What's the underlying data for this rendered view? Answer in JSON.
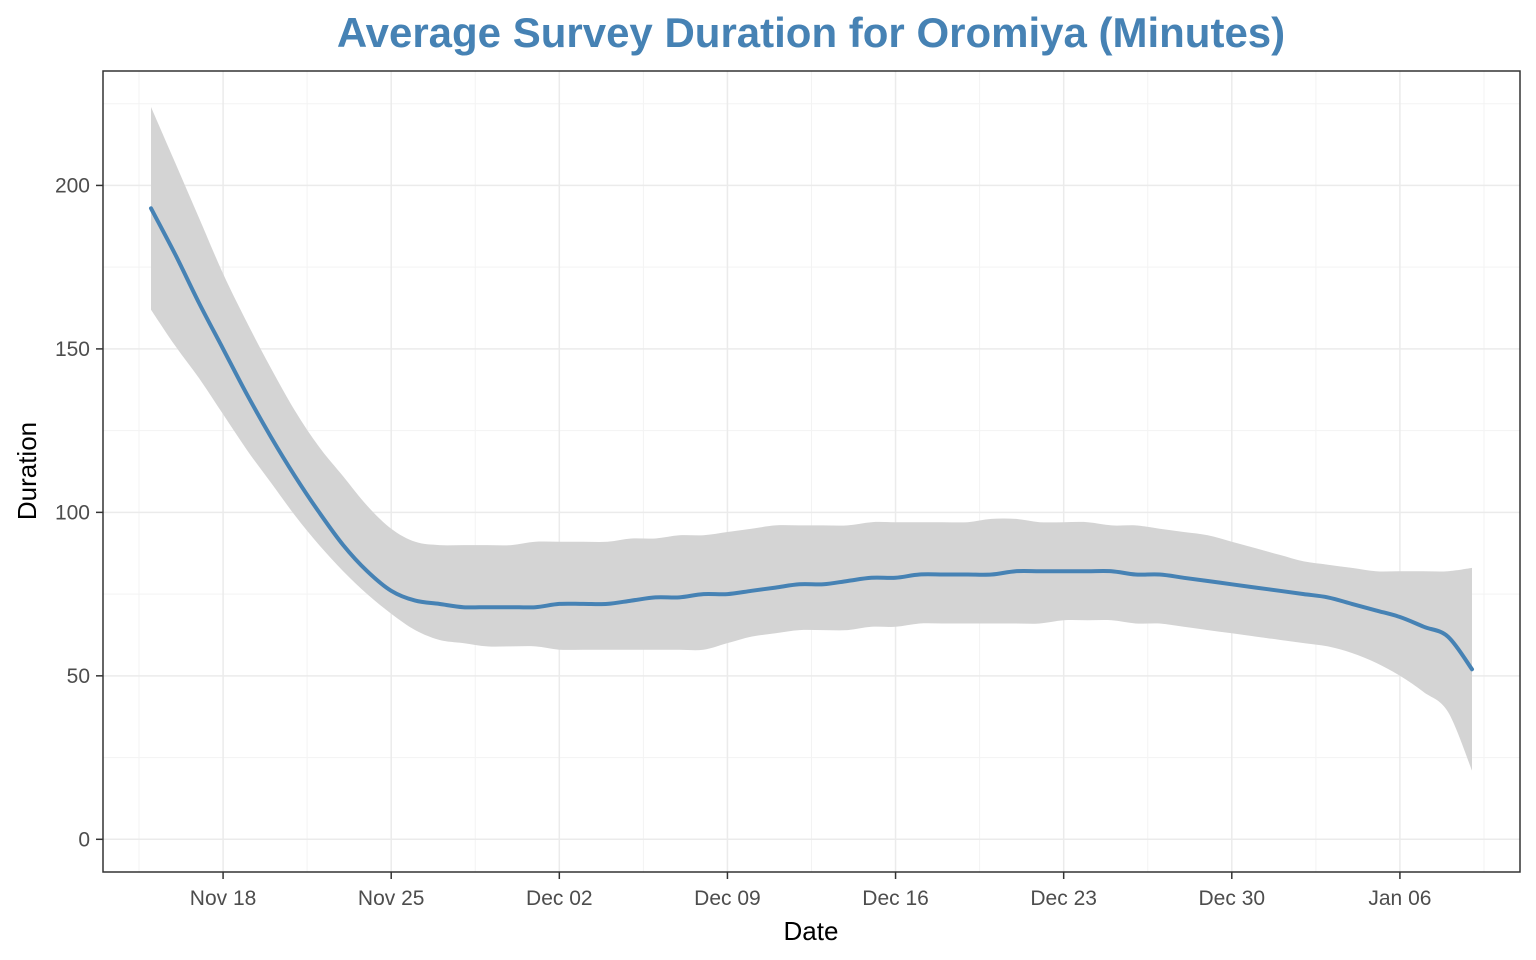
{
  "chart_data": {
    "type": "line",
    "title": "Average Survey Duration for Oromiya (Minutes)",
    "xlabel": "Date",
    "ylabel": "Duration",
    "x_axis_type": "date",
    "xlim": [
      "2023-11-13",
      "2024-01-11"
    ],
    "ylim": [
      -10,
      235
    ],
    "x_ticks": [
      {
        "date": "2023-11-18",
        "label": "Nov 18"
      },
      {
        "date": "2023-11-25",
        "label": "Nov 25"
      },
      {
        "date": "2023-12-02",
        "label": "Dec 02"
      },
      {
        "date": "2023-12-09",
        "label": "Dec 09"
      },
      {
        "date": "2023-12-16",
        "label": "Dec 16"
      },
      {
        "date": "2023-12-23",
        "label": "Dec 23"
      },
      {
        "date": "2023-12-30",
        "label": "Dec 30"
      },
      {
        "date": "2024-01-06",
        "label": "Jan 06"
      }
    ],
    "y_ticks": [
      0,
      50,
      100,
      150,
      200
    ],
    "grid": true,
    "legend": "none",
    "colors": {
      "title": "#4682b4",
      "line": "#4682b4",
      "ribbon": "#d4d4d4",
      "grid_major": "#ebebeb",
      "grid_minor": "#f3f3f3",
      "panel_border": "#333333"
    },
    "series": [
      {
        "x": [
          "2023-11-15",
          "2023-11-16",
          "2023-11-17",
          "2023-11-18",
          "2023-11-19",
          "2023-11-20",
          "2023-11-21",
          "2023-11-22",
          "2023-11-23",
          "2023-11-24",
          "2023-11-25",
          "2023-11-26",
          "2023-11-27",
          "2023-11-28",
          "2023-11-29",
          "2023-11-30",
          "2023-12-01",
          "2023-12-02",
          "2023-12-03",
          "2023-12-04",
          "2023-12-05",
          "2023-12-06",
          "2023-12-07",
          "2023-12-08",
          "2023-12-09",
          "2023-12-10",
          "2023-12-11",
          "2023-12-12",
          "2023-12-13",
          "2023-12-14",
          "2023-12-15",
          "2023-12-16",
          "2023-12-17",
          "2023-12-18",
          "2023-12-19",
          "2023-12-20",
          "2023-12-21",
          "2023-12-22",
          "2023-12-23",
          "2023-12-24",
          "2023-12-25",
          "2023-12-26",
          "2023-12-27",
          "2023-12-28",
          "2023-12-29",
          "2023-12-30",
          "2023-12-31",
          "2024-01-01",
          "2024-01-02",
          "2024-01-03",
          "2024-01-04",
          "2024-01-05",
          "2024-01-06",
          "2024-01-07",
          "2024-01-08",
          "2024-01-09"
        ],
        "y": [
          193,
          179,
          164,
          150,
          136,
          123,
          111,
          100,
          90,
          82,
          76,
          73,
          72,
          71,
          71,
          71,
          71,
          72,
          72,
          72,
          73,
          74,
          74,
          75,
          75,
          76,
          77,
          78,
          78,
          79,
          80,
          80,
          81,
          81,
          81,
          81,
          82,
          82,
          82,
          82,
          82,
          81,
          81,
          80,
          79,
          78,
          77,
          76,
          75,
          74,
          72,
          70,
          68,
          65,
          62,
          52
        ],
        "lower": [
          162,
          151,
          141,
          130,
          119,
          109,
          99,
          90,
          82,
          75,
          69,
          64,
          61,
          60,
          59,
          59,
          59,
          58,
          58,
          58,
          58,
          58,
          58,
          58,
          60,
          62,
          63,
          64,
          64,
          64,
          65,
          65,
          66,
          66,
          66,
          66,
          66,
          66,
          67,
          67,
          67,
          66,
          66,
          65,
          64,
          63,
          62,
          61,
          60,
          59,
          57,
          54,
          50,
          45,
          39,
          21
        ],
        "upper": [
          224,
          207,
          190,
          173,
          158,
          144,
          131,
          120,
          111,
          102,
          95,
          91,
          90,
          90,
          90,
          90,
          91,
          91,
          91,
          91,
          92,
          92,
          93,
          93,
          94,
          95,
          96,
          96,
          96,
          96,
          97,
          97,
          97,
          97,
          97,
          98,
          98,
          97,
          97,
          97,
          96,
          96,
          95,
          94,
          93,
          91,
          89,
          87,
          85,
          84,
          83,
          82,
          82,
          82,
          82,
          83
        ]
      }
    ]
  }
}
